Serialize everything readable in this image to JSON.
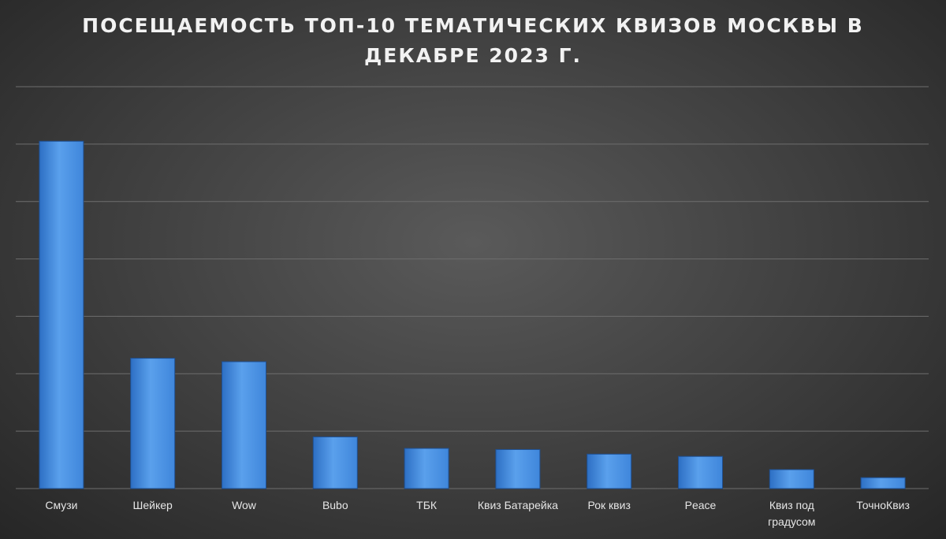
{
  "chart_data": {
    "type": "bar",
    "title": "ПОСЕЩАЕМОСТЬ ТОП-10 ТЕМАТИЧЕСКИХ КВИЗОВ МОСКВЫ В\nДЕКАБРЕ 2023 Г.",
    "xlabel": "",
    "ylabel": "",
    "categories": [
      [
        "Смузи"
      ],
      [
        "Шейкер"
      ],
      [
        "Wow"
      ],
      [
        "Bubo"
      ],
      [
        "ТБК"
      ],
      [
        "Квиз Батарейка"
      ],
      [
        "Рок квиз"
      ],
      [
        "Peace"
      ],
      [
        "Квиз под",
        "градусом"
      ],
      [
        "ТочноКвиз"
      ]
    ],
    "values": [
      6.05,
      2.27,
      2.21,
      0.9,
      0.7,
      0.68,
      0.6,
      0.56,
      0.33,
      0.19
    ],
    "ylim": [
      0,
      7
    ],
    "grid": true,
    "legend": "none",
    "colors": {
      "bar_top": "#5aa0ec",
      "bar_mid": "#3f86db",
      "bar_bottom": "#2d6fc4",
      "bar_edge": "#1f4f90"
    }
  }
}
